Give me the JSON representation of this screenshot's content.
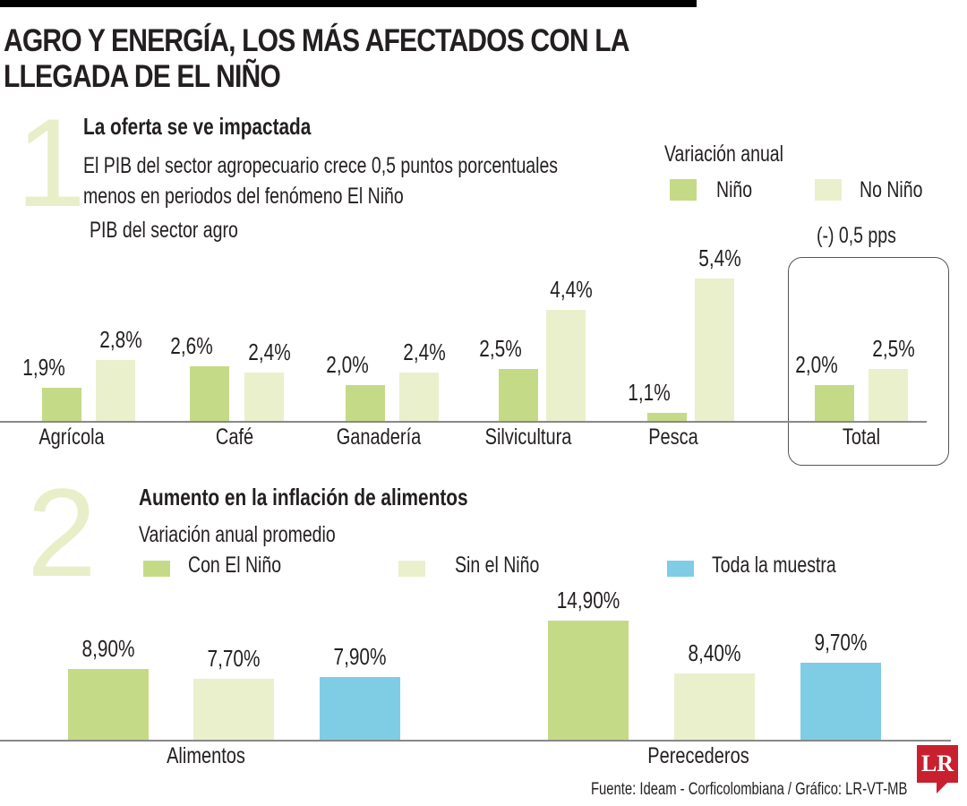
{
  "title": "AGRO Y ENERGÍA, LOS MÁS AFECTADOS CON LA LLEGADA DE EL NIÑO",
  "section1": {
    "number": "1",
    "heading": "La oferta se ve impactada",
    "desc1": "El PIB del sector agropecuario crece 0,5 puntos porcentuales",
    "desc2": "menos en periodos del fenómeno El Niño",
    "chart_title": "PIB del sector agro",
    "legend_title": "Variación anual",
    "annotation": "(-) 0,5 pps"
  },
  "section2": {
    "number": "2",
    "heading": "Aumento en la inflación de alimentos",
    "legend_title": "Variación anual promedio"
  },
  "source": "Fuente: Ideam - Corficolombiana / Gráfico: LR-VT-MB",
  "logo": "LR",
  "colors": {
    "green": "#c5da87",
    "light": "#eaf0cc",
    "blue": "#7fcde4"
  },
  "chart_data": [
    {
      "type": "bar",
      "title": "PIB del sector agro",
      "categories": [
        "Agrícola",
        "Café",
        "Ganadería",
        "Silvicultura",
        "Pesca",
        "Total"
      ],
      "series": [
        {
          "name": "Niño",
          "values": [
            1.9,
            2.6,
            2.0,
            2.5,
            1.1,
            2.0
          ],
          "labels": [
            "1,9%",
            "2,6%",
            "2,0%",
            "2,5%",
            "1,1%",
            "2,0%"
          ]
        },
        {
          "name": "No Niño",
          "values": [
            2.8,
            2.4,
            2.4,
            4.4,
            5.4,
            2.5
          ],
          "labels": [
            "2,8%",
            "2,4%",
            "2,4%",
            "4,4%",
            "5,4%",
            "2,5%"
          ]
        }
      ]
    },
    {
      "type": "bar",
      "title": "Variación anual promedio",
      "categories": [
        "Alimentos",
        "Perecederos"
      ],
      "series": [
        {
          "name": "Con El Niño",
          "values": [
            8.9,
            14.9
          ],
          "labels": [
            "8,90%",
            "14,90%"
          ]
        },
        {
          "name": "Sin el Niño",
          "values": [
            7.7,
            8.4
          ],
          "labels": [
            "7,70%",
            "8,40%"
          ]
        },
        {
          "name": "Toda la muestra",
          "values": [
            7.9,
            9.7
          ],
          "labels": [
            "7,90%",
            "9,70%"
          ]
        }
      ]
    }
  ]
}
